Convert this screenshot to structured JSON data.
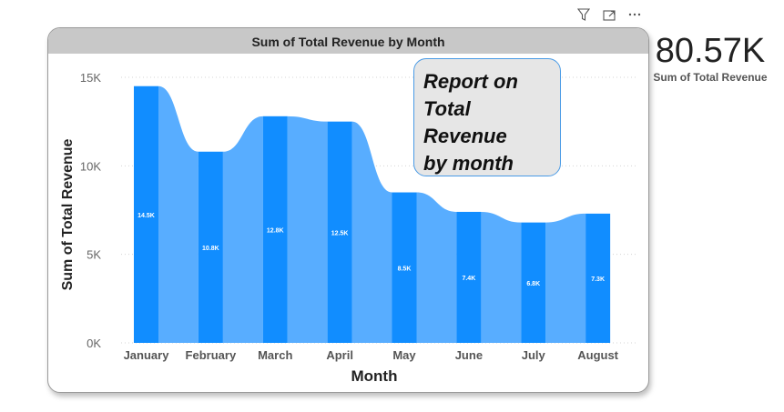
{
  "visual": {
    "toolbar": {
      "filter_icon": "filter-icon",
      "focus_icon": "focus-mode-icon",
      "more_icon": "more-options-icon"
    }
  },
  "chart_data": {
    "type": "bar",
    "title": "Sum of Total Revenue by Month",
    "xlabel": "Month",
    "ylabel": "Sum of Total Revenue",
    "categories": [
      "January",
      "February",
      "March",
      "April",
      "May",
      "June",
      "July",
      "August"
    ],
    "values": [
      14500,
      10800,
      12800,
      12500,
      8500,
      7400,
      6800,
      7300
    ],
    "data_labels": [
      "14.5K",
      "10.8K",
      "12.8K",
      "12.5K",
      "8.5K",
      "7.4K",
      "6.8K",
      "7.3K"
    ],
    "yticks": [
      0,
      5000,
      10000,
      15000
    ],
    "ytick_labels": [
      "0K",
      "5K",
      "10K",
      "15K"
    ],
    "ylim": [
      0,
      15000
    ],
    "grid": true,
    "bar_color": "#118DFF",
    "ribbon_color": "#58ADFF"
  },
  "textbox": {
    "text": "Report on\nTotal Revenue\nby month"
  },
  "kpi": {
    "value": "80.57K",
    "label": "Sum of Total Revenue"
  }
}
